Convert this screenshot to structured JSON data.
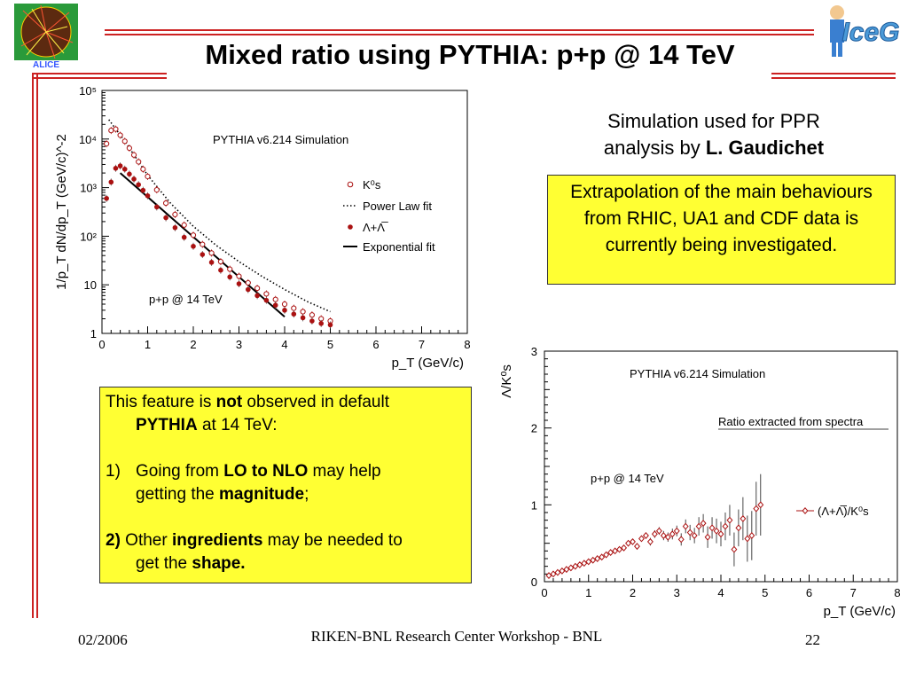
{
  "slide": {
    "title": "Mixed ratio using PYTHIA: p+p @ 14 TeV",
    "logo_left_text": "ALICE",
    "logo_right_text": "IceG",
    "colors": {
      "accent_line": "#cc2222",
      "box_fill": "#ffff33"
    }
  },
  "note": {
    "line1": "Simulation used for PPR",
    "line2_prefix": "analysis by ",
    "line2_bold": "L. Gaudichet"
  },
  "box_top": {
    "text": "Extrapolation of the main behaviours from RHIC, UA1 and CDF data is currently being investigated."
  },
  "box_bottom": {
    "p1_a": "This feature is ",
    "p1_b": "not",
    "p1_c": " observed in default",
    "p1_d": "PYTHIA",
    "p1_e": " at 14 TeV:",
    "item1_num": "1)",
    "item1_a": "Going from ",
    "item1_b": "LO to NLO",
    "item1_c": " may help",
    "item1_d": "getting the ",
    "item1_e": "magnitude",
    "item1_f": ";",
    "item2_num": "2)",
    "item2_a": " Other ",
    "item2_b": "ingredients",
    "item2_c": " may be needed to",
    "item2_d": "get the ",
    "item2_e": "shape."
  },
  "footer": {
    "date": "02/2006",
    "center": "RIKEN-BNL Research Center Workshop - BNL",
    "page": "22"
  },
  "chart_data": [
    {
      "type": "scatter",
      "title": "PYTHIA v6.214 Simulation",
      "annotation": "p+p @ 14 TeV",
      "xlabel": "p_T (GeV/c)",
      "ylabel": "1/p_T dN/dp_T (GeV/c)^-2",
      "xlim": [
        0,
        8
      ],
      "ylim_log": [
        1,
        100000
      ],
      "y_scale": "log",
      "xticks": [
        "0",
        "1",
        "2",
        "3",
        "4",
        "5",
        "6",
        "7",
        "8"
      ],
      "yticks": [
        "1",
        "10",
        "10²",
        "10³",
        "10⁴",
        "10⁵"
      ],
      "legend": [
        "K⁰s",
        "Power Law fit",
        "Λ+Λ̅",
        "Exponential fit"
      ],
      "series": [
        {
          "name": "K0s",
          "marker": "open-circle",
          "color": "#aa1111",
          "x": [
            0.1,
            0.2,
            0.3,
            0.4,
            0.5,
            0.6,
            0.7,
            0.8,
            0.9,
            1.0,
            1.2,
            1.4,
            1.6,
            1.8,
            2.0,
            2.2,
            2.4,
            2.6,
            2.8,
            3.0,
            3.2,
            3.4,
            3.6,
            3.8,
            4.0,
            4.2,
            4.4,
            4.6,
            4.8,
            5.0
          ],
          "y": [
            8000,
            15000,
            16000,
            12000,
            9000,
            6500,
            4700,
            3400,
            2400,
            1700,
            900,
            480,
            280,
            170,
            105,
            68,
            45,
            30,
            21,
            15,
            11,
            8.5,
            6.5,
            5,
            4,
            3.3,
            2.8,
            2.4,
            2,
            1.8
          ]
        },
        {
          "name": "Lambda+AntiLambda",
          "marker": "filled-circle",
          "color": "#aa1111",
          "x": [
            0.1,
            0.2,
            0.3,
            0.4,
            0.5,
            0.6,
            0.7,
            0.8,
            0.9,
            1.0,
            1.2,
            1.4,
            1.6,
            1.8,
            2.0,
            2.2,
            2.4,
            2.6,
            2.8,
            3.0,
            3.2,
            3.4,
            3.6,
            3.8,
            4.0,
            4.2,
            4.4,
            4.6,
            4.8,
            5.0
          ],
          "y": [
            600,
            1300,
            2500,
            2800,
            2400,
            1900,
            1500,
            1150,
            880,
            680,
            400,
            240,
            150,
            95,
            62,
            42,
            29,
            20,
            14.5,
            10.5,
            8,
            6,
            4.8,
            3.8,
            3,
            2.5,
            2.1,
            1.8,
            1.6,
            1.5
          ]
        },
        {
          "name": "Power Law fit",
          "style": "dotted",
          "x": [
            0.15,
            0.5,
            1.0,
            1.5,
            2.0,
            2.5,
            3.0,
            3.5,
            4.0,
            4.5,
            5.0
          ],
          "y": [
            25000,
            9000,
            1800,
            480,
            160,
            65,
            30,
            15,
            8,
            4.5,
            2.8
          ]
        },
        {
          "name": "Exponential fit",
          "style": "solid",
          "x": [
            0.4,
            4.0
          ],
          "y": [
            2000,
            2.2
          ]
        }
      ]
    },
    {
      "type": "scatter",
      "title": "PYTHIA v6.214 Simulation",
      "annotation": "p+p @ 14 TeV",
      "subtitle": "Ratio extracted from spectra",
      "xlabel": "p_T (GeV/c)",
      "ylabel": "Λ/K⁰s",
      "xlim": [
        0,
        8
      ],
      "ylim": [
        0,
        3
      ],
      "xticks": [
        "0",
        "1",
        "2",
        "3",
        "4",
        "5",
        "6",
        "7",
        "8"
      ],
      "yticks": [
        "0",
        "1",
        "2",
        "3"
      ],
      "legend": [
        "(Λ+Λ̅)/K⁰s"
      ],
      "series": [
        {
          "name": "(Lambda+AntiLambda)/K0s",
          "marker": "open-diamond",
          "color": "#aa1111",
          "x": [
            0.1,
            0.2,
            0.3,
            0.4,
            0.5,
            0.6,
            0.7,
            0.8,
            0.9,
            1.0,
            1.1,
            1.2,
            1.3,
            1.4,
            1.5,
            1.6,
            1.7,
            1.8,
            1.9,
            2.0,
            2.1,
            2.2,
            2.3,
            2.4,
            2.5,
            2.6,
            2.7,
            2.8,
            2.9,
            3.0,
            3.1,
            3.2,
            3.3,
            3.4,
            3.5,
            3.6,
            3.7,
            3.8,
            3.9,
            4.0,
            4.1,
            4.2,
            4.3,
            4.4,
            4.5,
            4.6,
            4.7,
            4.8,
            4.9
          ],
          "y": [
            0.08,
            0.1,
            0.12,
            0.14,
            0.16,
            0.18,
            0.2,
            0.22,
            0.24,
            0.26,
            0.28,
            0.3,
            0.32,
            0.35,
            0.38,
            0.4,
            0.42,
            0.44,
            0.5,
            0.52,
            0.46,
            0.56,
            0.6,
            0.52,
            0.62,
            0.66,
            0.6,
            0.58,
            0.62,
            0.66,
            0.55,
            0.72,
            0.64,
            0.6,
            0.72,
            0.76,
            0.58,
            0.7,
            0.66,
            0.62,
            0.72,
            0.8,
            0.42,
            0.7,
            0.82,
            0.56,
            0.6,
            0.95,
            1.0
          ],
          "err": [
            0.01,
            0.01,
            0.01,
            0.01,
            0.01,
            0.01,
            0.01,
            0.01,
            0.01,
            0.02,
            0.02,
            0.02,
            0.02,
            0.02,
            0.02,
            0.02,
            0.03,
            0.03,
            0.03,
            0.03,
            0.04,
            0.04,
            0.04,
            0.05,
            0.05,
            0.05,
            0.06,
            0.06,
            0.07,
            0.07,
            0.08,
            0.09,
            0.1,
            0.1,
            0.12,
            0.12,
            0.14,
            0.14,
            0.16,
            0.16,
            0.18,
            0.2,
            0.22,
            0.24,
            0.28,
            0.3,
            0.32,
            0.35,
            0.4
          ]
        }
      ]
    }
  ]
}
